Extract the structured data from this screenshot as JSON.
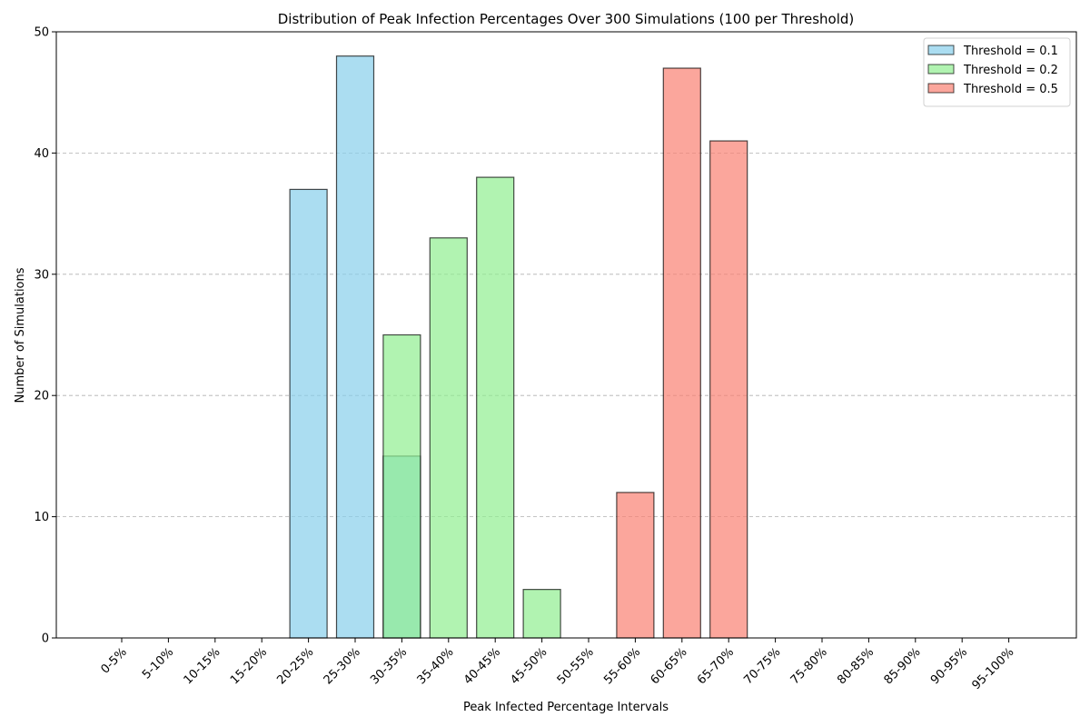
{
  "chart_data": {
    "type": "bar",
    "title": "Distribution of Peak Infection Percentages Over 300 Simulations (100 per Threshold)",
    "xlabel": "Peak Infected Percentage Intervals",
    "ylabel": "Number of Simulations",
    "ylim": [
      0,
      50
    ],
    "yticks": [
      0,
      10,
      20,
      30,
      40,
      50
    ],
    "grid": "y-dashed",
    "legend_position": "top-right",
    "categories": [
      "0-5%",
      "5-10%",
      "10-15%",
      "15-20%",
      "20-25%",
      "25-30%",
      "30-35%",
      "35-40%",
      "40-45%",
      "45-50%",
      "50-55%",
      "55-60%",
      "60-65%",
      "65-70%",
      "70-75%",
      "75-80%",
      "80-85%",
      "85-90%",
      "90-95%",
      "95-100%"
    ],
    "series": [
      {
        "name": "Threshold = 0.1",
        "color": "#87CEEB",
        "values": [
          0,
          0,
          0,
          0,
          37,
          48,
          15,
          0,
          0,
          0,
          0,
          0,
          0,
          0,
          0,
          0,
          0,
          0,
          0,
          0
        ]
      },
      {
        "name": "Threshold = 0.2",
        "color": "#90EE90",
        "values": [
          0,
          0,
          0,
          0,
          0,
          0,
          25,
          33,
          38,
          4,
          0,
          0,
          0,
          0,
          0,
          0,
          0,
          0,
          0,
          0
        ]
      },
      {
        "name": "Threshold = 0.5",
        "color": "#FA8072",
        "values": [
          0,
          0,
          0,
          0,
          0,
          0,
          0,
          0,
          0,
          0,
          0,
          12,
          47,
          41,
          0,
          0,
          0,
          0,
          0,
          0
        ]
      }
    ]
  }
}
